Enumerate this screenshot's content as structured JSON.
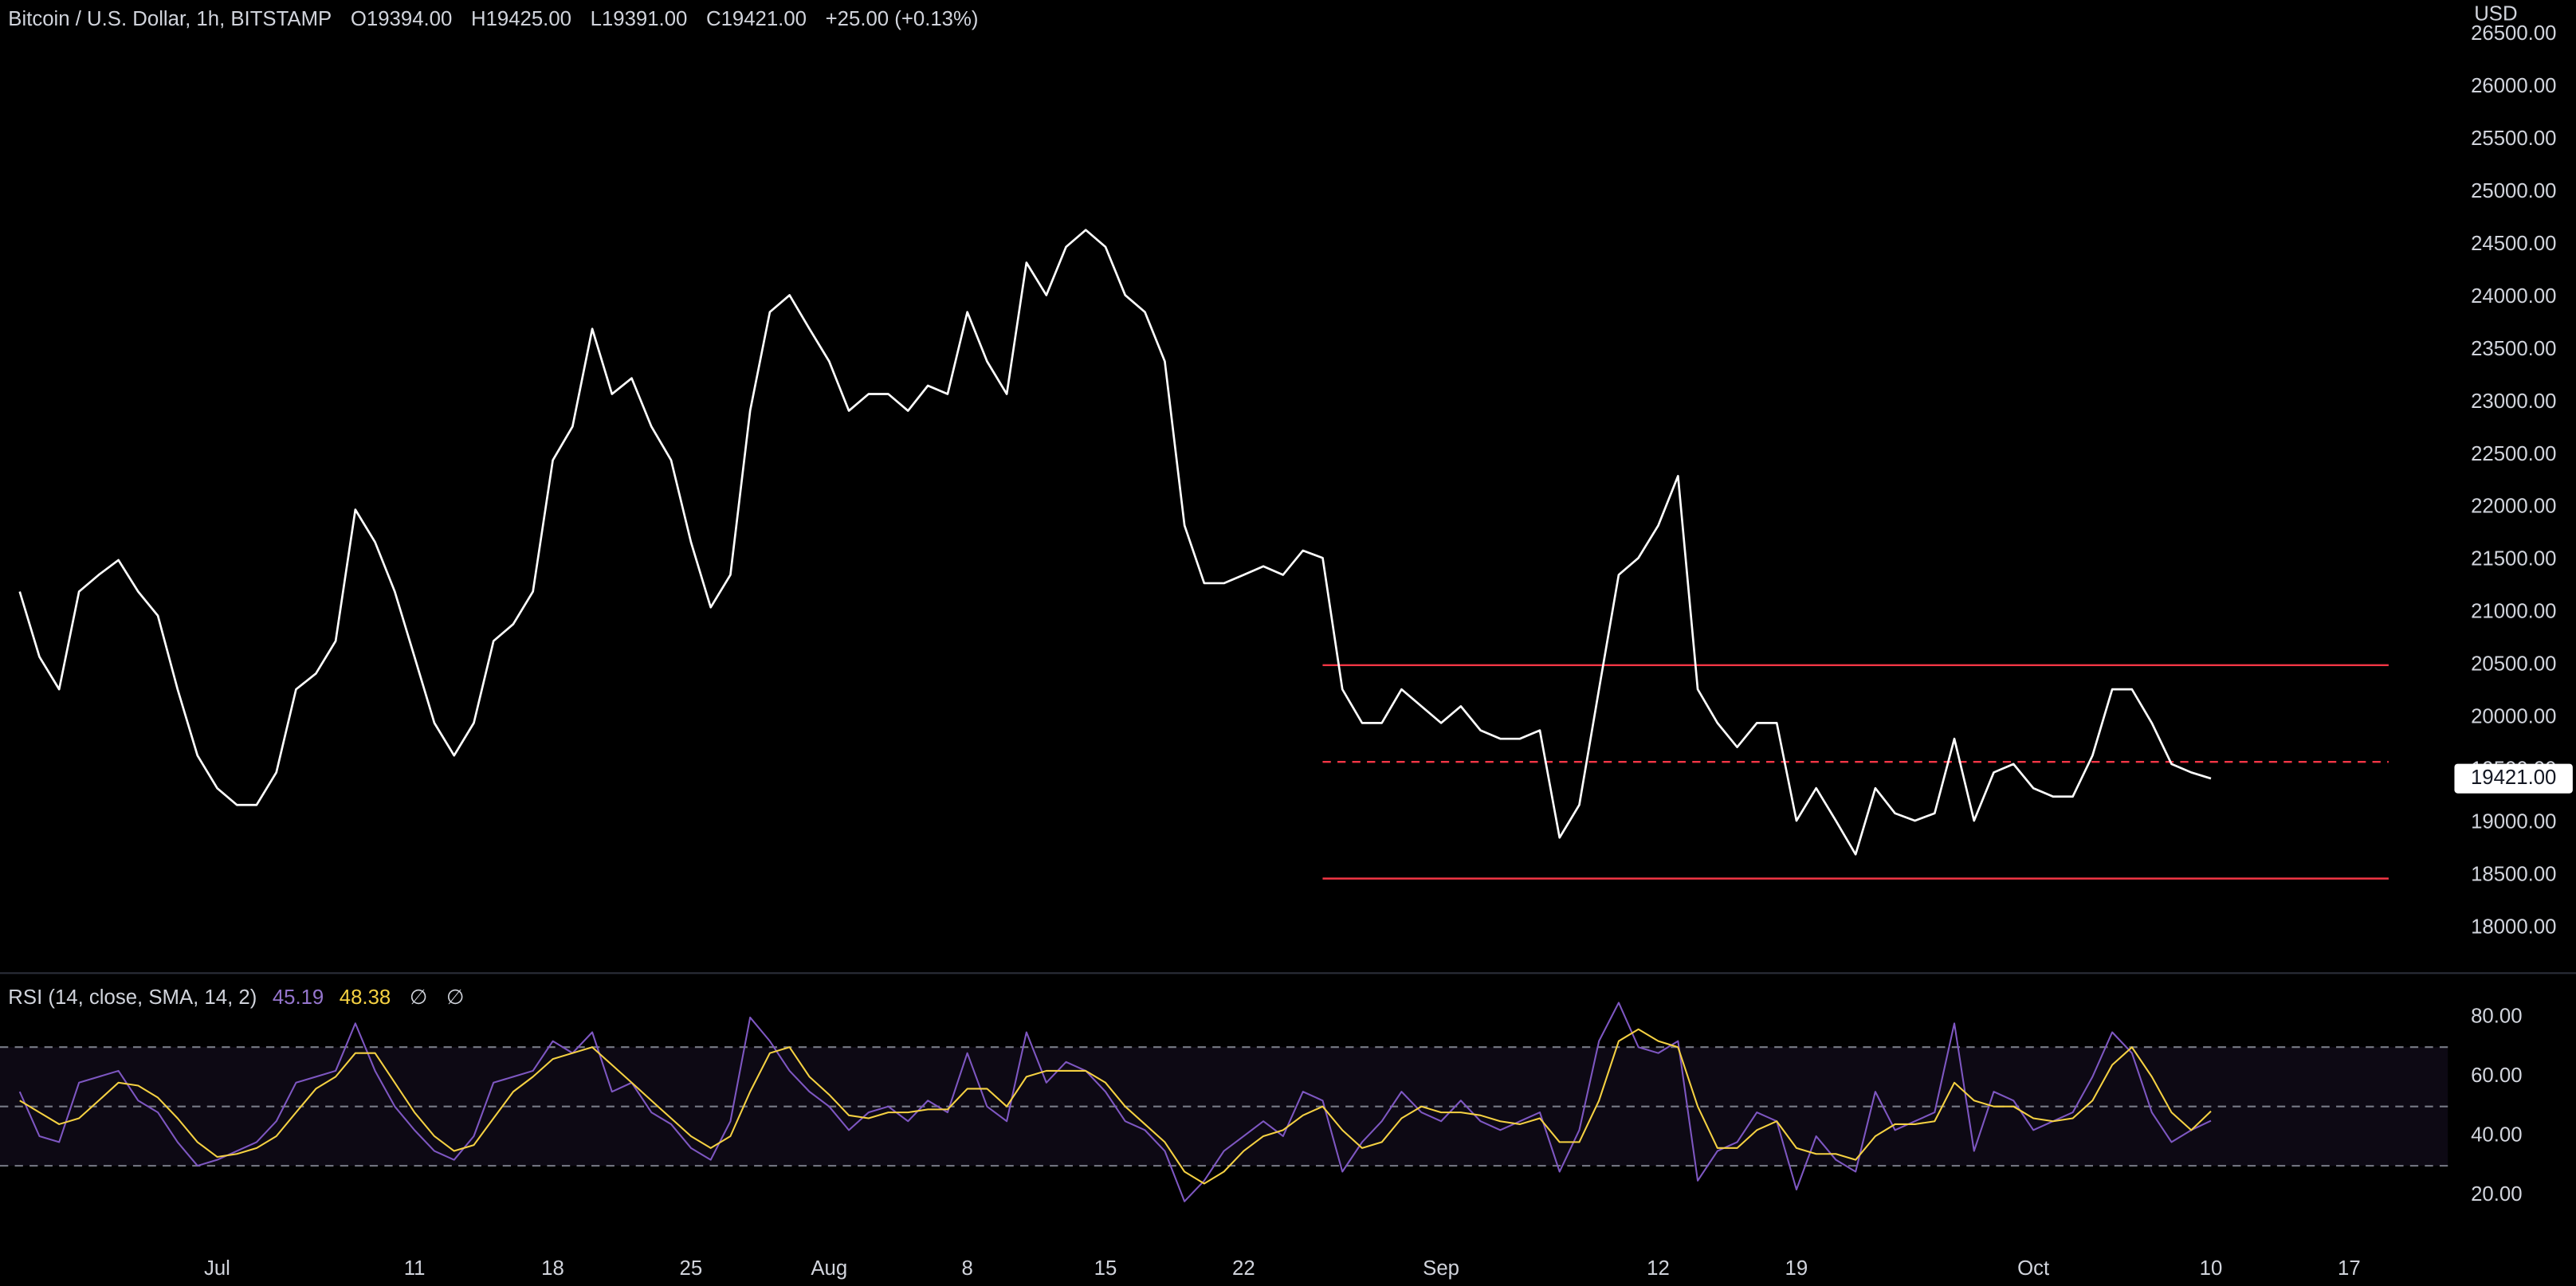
{
  "header": {
    "title": "Bitcoin / U.S. Dollar, 1h, BITSTAMP",
    "ohlc": [
      "O19394.00",
      "H19425.00",
      "L19391.00",
      "C19421.00"
    ],
    "change": "+25.00 (+0.13%)"
  },
  "chart_data": [
    {
      "type": "line",
      "currency": "USD",
      "x": [
        "06-21",
        "06-22",
        "06-23",
        "06-24",
        "06-25",
        "06-26",
        "06-27",
        "06-28",
        "06-29",
        "06-30",
        "07-01",
        "07-02",
        "07-03",
        "07-04",
        "07-05",
        "07-06",
        "07-07",
        "07-08",
        "07-09",
        "07-10",
        "07-11",
        "07-12",
        "07-13",
        "07-14",
        "07-15",
        "07-16",
        "07-17",
        "07-18",
        "07-19",
        "07-20",
        "07-21",
        "07-22",
        "07-23",
        "07-24",
        "07-25",
        "07-26",
        "07-27",
        "07-28",
        "07-29",
        "07-30",
        "07-31",
        "08-01",
        "08-02",
        "08-03",
        "08-04",
        "08-05",
        "08-06",
        "08-07",
        "08-08",
        "08-09",
        "08-10",
        "08-11",
        "08-12",
        "08-13",
        "08-14",
        "08-15",
        "08-16",
        "08-17",
        "08-18",
        "08-19",
        "08-20",
        "08-21",
        "08-22",
        "08-23",
        "08-24",
        "08-25",
        "08-26",
        "08-27",
        "08-28",
        "08-29",
        "08-30",
        "08-31",
        "09-01",
        "09-02",
        "09-03",
        "09-04",
        "09-05",
        "09-06",
        "09-07",
        "09-08",
        "09-09",
        "09-10",
        "09-11",
        "09-12",
        "09-13",
        "09-14",
        "09-15",
        "09-16",
        "09-17",
        "09-18",
        "09-19",
        "09-20",
        "09-21",
        "09-22",
        "09-23",
        "09-24",
        "09-25",
        "09-26",
        "09-27",
        "09-28",
        "09-29",
        "09-30",
        "10-01",
        "10-02",
        "10-03",
        "10-04",
        "10-05",
        "10-06",
        "10-07",
        "10-08",
        "10-09",
        "10-10"
      ],
      "series": [
        {
          "color": "#ffffff",
          "values": [
            21200,
            20580,
            20270,
            21200,
            21360,
            21500,
            21200,
            20970,
            20270,
            19640,
            19330,
            19170,
            19170,
            19480,
            20270,
            20420,
            20730,
            21980,
            21670,
            21200,
            20580,
            19950,
            19640,
            19950,
            20730,
            20890,
            21200,
            22450,
            22770,
            23700,
            23080,
            23230,
            22770,
            22450,
            21670,
            21050,
            21360,
            22920,
            23860,
            24020,
            23700,
            23390,
            22920,
            23080,
            23080,
            22920,
            23160,
            23080,
            23860,
            23390,
            23080,
            24330,
            24020,
            24480,
            24640,
            24480,
            24020,
            23860,
            23390,
            21830,
            21280,
            21280,
            21360,
            21440,
            21360,
            21590,
            21520,
            20270,
            19950,
            19950,
            20270,
            20110,
            19950,
            20110,
            19880,
            19800,
            19800,
            19880,
            18860,
            19170,
            20270,
            21360,
            21520,
            21830,
            22300,
            20270,
            19950,
            19720,
            19950,
            19950,
            19020,
            19330,
            19020,
            18700,
            19330,
            19090,
            19020,
            19090,
            19800,
            19020,
            19480,
            19560,
            19330,
            19250,
            19250,
            19640,
            20270,
            20270,
            19950,
            19560,
            19480,
            19421
          ]
        }
      ],
      "last_label": "19421.00",
      "xlim": [
        "06-20",
        "10-22"
      ],
      "ylim": [
        17578,
        26828
      ],
      "yticks": [
        {
          "value": 18000,
          "label": "18000.00"
        },
        {
          "value": 18500,
          "label": "18500.00"
        },
        {
          "value": 19000,
          "label": "19000.00"
        },
        {
          "value": 19500,
          "label": "19500.00"
        },
        {
          "value": 20000,
          "label": "20000.00"
        },
        {
          "value": 20500,
          "label": "20500.00"
        },
        {
          "value": 21000,
          "label": "21000.00"
        },
        {
          "value": 21500,
          "label": "21500.00"
        },
        {
          "value": 22000,
          "label": "22000.00"
        },
        {
          "value": 22500,
          "label": "22500.00"
        },
        {
          "value": 23000,
          "label": "23000.00"
        },
        {
          "value": 23500,
          "label": "23500.00"
        },
        {
          "value": 24000,
          "label": "24000.00"
        },
        {
          "value": 24500,
          "label": "24500.00"
        },
        {
          "value": 25000,
          "label": "25000.00"
        },
        {
          "value": 25500,
          "label": "25500.00"
        },
        {
          "value": 26000,
          "label": "26000.00"
        },
        {
          "value": 26500,
          "label": "26500.00"
        }
      ],
      "xticks": [
        {
          "value": "07-01",
          "label": "Jul"
        },
        {
          "value": "07-11",
          "label": "11"
        },
        {
          "value": "07-18",
          "label": "18"
        },
        {
          "value": "07-25",
          "label": "25"
        },
        {
          "value": "08-01",
          "label": "Aug"
        },
        {
          "value": "08-08",
          "label": "8"
        },
        {
          "value": "08-15",
          "label": "15"
        },
        {
          "value": "08-22",
          "label": "22"
        },
        {
          "value": "09-01",
          "label": "Sep"
        },
        {
          "value": "09-12",
          "label": "12"
        },
        {
          "value": "09-19",
          "label": "19"
        },
        {
          "value": "10-01",
          "label": "Oct"
        },
        {
          "value": "10-10",
          "label": "10"
        },
        {
          "value": "10-17",
          "label": "17"
        }
      ],
      "hlines": [
        {
          "value": 20500,
          "from": "08-26",
          "to": "10-19",
          "style": "solid",
          "color": "#f23645"
        },
        {
          "value": 19580,
          "from": "08-26",
          "to": "10-19",
          "style": "dashed",
          "color": "#f23645"
        },
        {
          "value": 18470,
          "from": "08-26",
          "to": "10-19",
          "style": "solid",
          "color": "#f23645"
        }
      ]
    },
    {
      "type": "line",
      "title": "RSI (14, close, SMA, 14, 2)",
      "extras": [
        "∅",
        "∅"
      ],
      "series": [
        {
          "color": "#7e57c2",
          "values": [
            55,
            40,
            38,
            58,
            60,
            62,
            52,
            48,
            38,
            30,
            32,
            35,
            38,
            45,
            58,
            60,
            62,
            78,
            62,
            50,
            42,
            35,
            32,
            40,
            58,
            60,
            62,
            72,
            68,
            75,
            55,
            58,
            48,
            44,
            36,
            32,
            45,
            80,
            72,
            62,
            55,
            50,
            42,
            48,
            50,
            45,
            52,
            48,
            68,
            50,
            45,
            75,
            58,
            65,
            62,
            55,
            45,
            42,
            35,
            18,
            25,
            35,
            40,
            45,
            40,
            55,
            52,
            28,
            38,
            45,
            55,
            48,
            45,
            52,
            45,
            42,
            45,
            48,
            28,
            42,
            72,
            85,
            70,
            68,
            72,
            25,
            35,
            38,
            48,
            45,
            22,
            40,
            32,
            28,
            55,
            42,
            45,
            48,
            78,
            35,
            55,
            52,
            42,
            45,
            48,
            60,
            75,
            68,
            48,
            38,
            42,
            45.19
          ]
        },
        {
          "color": "#f5d142",
          "values": [
            52,
            48,
            44,
            46,
            52,
            58,
            57,
            53,
            46,
            38,
            33,
            34,
            36,
            40,
            48,
            56,
            60,
            68,
            68,
            58,
            48,
            40,
            35,
            37,
            46,
            55,
            60,
            66,
            68,
            70,
            64,
            58,
            52,
            46,
            40,
            36,
            40,
            55,
            68,
            70,
            60,
            54,
            47,
            46,
            48,
            48,
            49,
            49,
            56,
            56,
            50,
            60,
            62,
            62,
            62,
            58,
            50,
            44,
            38,
            28,
            24,
            28,
            35,
            40,
            42,
            47,
            50,
            42,
            36,
            38,
            46,
            50,
            48,
            48,
            47,
            45,
            44,
            46,
            38,
            38,
            52,
            72,
            76,
            72,
            70,
            50,
            36,
            36,
            42,
            45,
            36,
            34,
            34,
            32,
            40,
            44,
            44,
            45,
            58,
            52,
            50,
            50,
            46,
            45,
            46,
            52,
            64,
            70,
            60,
            48,
            42,
            48.38
          ]
        }
      ],
      "levels": [
        70,
        50,
        30
      ],
      "band_color": "#7e57c2",
      "ylim": [
        5,
        93
      ],
      "yticks": [
        {
          "value": 20,
          "label": "20.00"
        },
        {
          "value": 40,
          "label": "40.00"
        },
        {
          "value": 60,
          "label": "60.00"
        },
        {
          "value": 80,
          "label": "80.00"
        }
      ]
    }
  ]
}
